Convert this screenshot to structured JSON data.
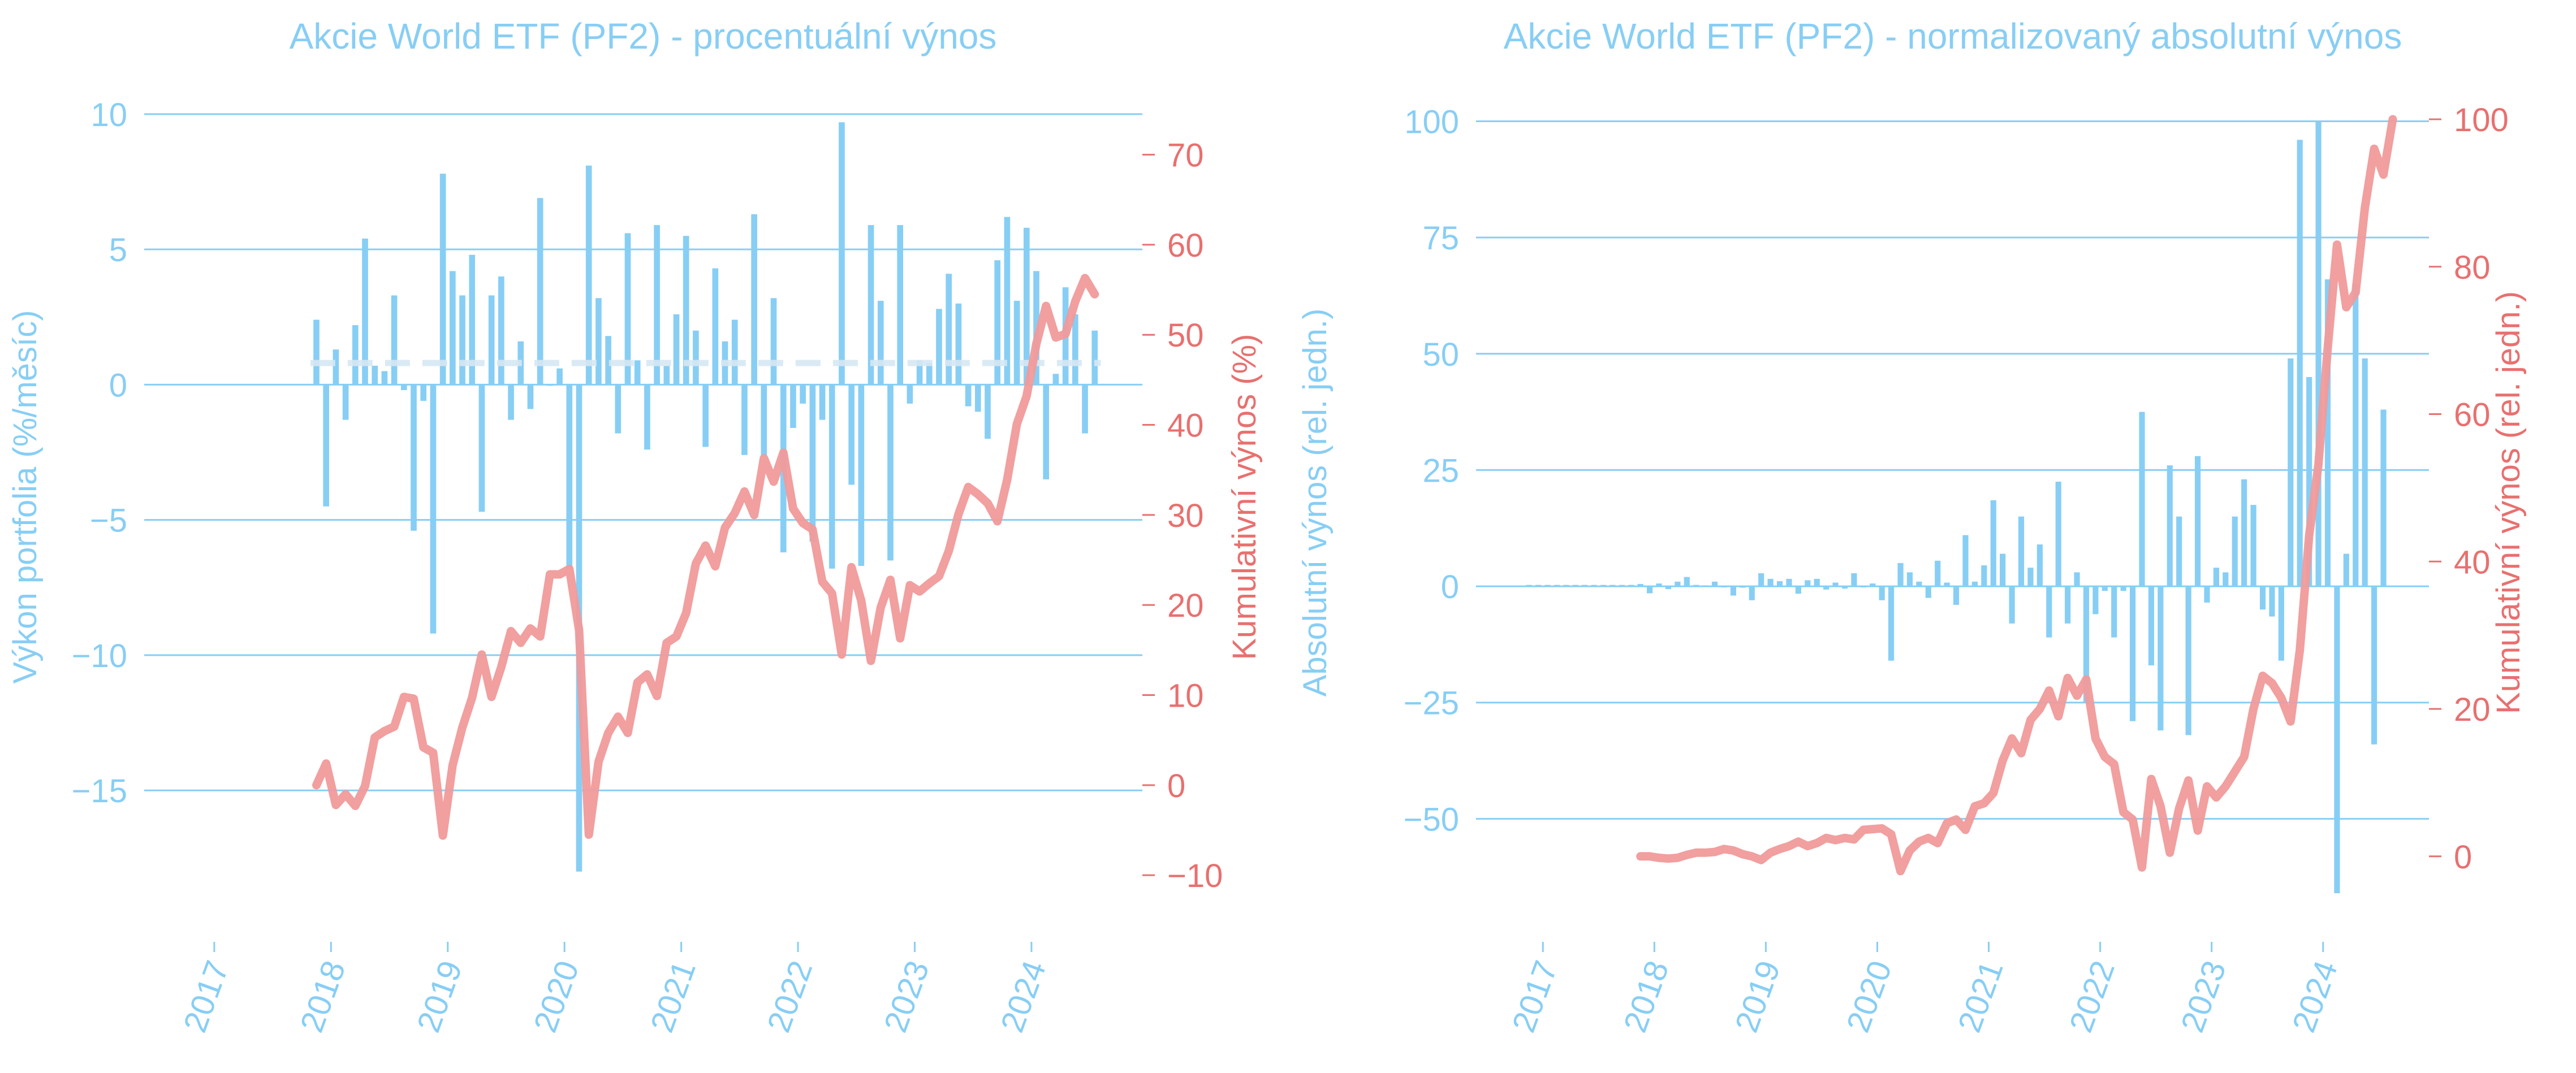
{
  "colors": {
    "bar": "#87CEF5",
    "line": "#F09A9A",
    "axis_left": "#87CEF5",
    "axis_right": "#E8706F",
    "mean_line": "#D6E8F3"
  },
  "chart_data": [
    {
      "type": "bar",
      "title": "Akcie World ETF (PF2) - procentuální výnos",
      "ylabel": "Výkon portfolia (%/měsíc)",
      "y2label": "Kumulativní výnos (%)",
      "xlim": [
        2016.4,
        2024.95
      ],
      "ylim": [
        -18.8,
        10.5
      ],
      "y2lim": [
        -12,
        76
      ],
      "yticks": [
        10,
        5,
        0,
        -5,
        -10,
        -15
      ],
      "y2ticks": [
        70,
        60,
        50,
        40,
        30,
        20,
        10,
        0,
        -10
      ],
      "xticks": [
        "2017",
        "2018",
        "2019",
        "2020",
        "2021",
        "2022",
        "2023",
        "2024"
      ],
      "mean_line": 0.8,
      "grid": "horizontal",
      "bars": {
        "start": "2017-11",
        "values": [
          2.4,
          -4.5,
          1.3,
          -1.3,
          2.2,
          5.4,
          0.7,
          0.5,
          3.3,
          -0.2,
          -5.4,
          -0.6,
          -9.2,
          7.8,
          4.2,
          3.3,
          4.8,
          -4.7,
          3.3,
          4.0,
          -1.3,
          1.6,
          -0.9,
          6.9,
          0.0,
          0.6,
          -6.8,
          -18.0,
          8.1,
          3.2,
          1.8,
          -1.8,
          5.6,
          0.9,
          -2.4,
          5.9,
          0.7,
          2.6,
          5.5,
          2.0,
          -2.3,
          4.3,
          1.6,
          2.4,
          -2.6,
          6.3,
          -2.6,
          3.2,
          -6.2,
          -1.6,
          -0.7,
          -5.8,
          -1.3,
          -6.8,
          9.7,
          -3.7,
          -6.7,
          5.9,
          3.1,
          -6.5,
          5.9,
          -0.7,
          0.9,
          0.8,
          2.8,
          4.1,
          3.0,
          -0.8,
          -1.0,
          -2.0,
          4.6,
          6.2,
          3.1,
          5.8,
          4.2,
          -3.5,
          0.4,
          3.6,
          2.6,
          -1.8,
          2.0
        ]
      },
      "line": {
        "start": "2017-11",
        "values": [
          0,
          2.4,
          -2.2,
          -1.0,
          -2.3,
          -0.1,
          5.3,
          6.0,
          6.5,
          9.8,
          9.6,
          4.2,
          3.6,
          -5.6,
          2.2,
          6.4,
          9.7,
          14.5,
          9.8,
          13.1,
          17.1,
          15.8,
          17.4,
          16.5,
          23.4,
          23.4,
          24.0,
          17.2,
          -5.5,
          2.6,
          5.8,
          7.6,
          5.8,
          11.4,
          12.3,
          9.9,
          15.8,
          16.5,
          19.1,
          24.6,
          26.6,
          24.3,
          28.6,
          30.2,
          32.6,
          30.0,
          36.3,
          33.7,
          36.9,
          30.7,
          29.1,
          28.4,
          22.6,
          21.3,
          14.5,
          24.2,
          20.5,
          13.8,
          19.7,
          22.8,
          16.3,
          22.2,
          21.5,
          22.4,
          23.2,
          26.0,
          30.1,
          33.1,
          32.3,
          31.3,
          29.3,
          33.9,
          40.1,
          43.2,
          49.0,
          53.2,
          49.7,
          50.1,
          53.7,
          56.3,
          54.5
        ]
      }
    },
    {
      "type": "bar",
      "title": "Akcie World ETF (PF2) - normalizovaný absolutní výnos",
      "ylabel": "Absolutní výnos (rel. jedn.)",
      "y2label": "Kumulativní výnos (rel. jedn.)",
      "xlim": [
        2016.4,
        2024.95
      ],
      "ylim": [
        -66,
        102
      ],
      "y2lim": [
        -5,
        101
      ],
      "yticks": [
        100,
        75,
        50,
        25,
        0,
        -25,
        -50
      ],
      "y2ticks": [
        100,
        80,
        60,
        40,
        20,
        0
      ],
      "xticks": [
        "2017",
        "2018",
        "2019",
        "2020",
        "2021",
        "2022",
        "2023",
        "2024"
      ],
      "grid": "horizontal",
      "bars": {
        "start": "2016-11",
        "values": [
          0.3,
          0.3,
          0.3,
          0.3,
          0.3,
          0.3,
          0.3,
          0.3,
          0.3,
          0.3,
          0.3,
          0.3,
          0.5,
          -1.5,
          0.6,
          -0.6,
          1.0,
          2.0,
          0.3,
          0.2,
          1.0,
          -0.1,
          -2.0,
          -0.3,
          -3.0,
          2.8,
          1.6,
          1.1,
          1.6,
          -1.6,
          1.3,
          1.6,
          -0.7,
          0.8,
          -0.5,
          2.8,
          0.0,
          0.6,
          -3.0,
          -16.0,
          5.0,
          3.0,
          1.0,
          -2.5,
          5.5,
          0.8,
          -4.0,
          11.0,
          1.0,
          4.5,
          18.5,
          7.0,
          -8.0,
          15.0,
          4.0,
          9.0,
          -11.0,
          22.5,
          -8.0,
          3.0,
          -25.0,
          -6.0,
          -1.0,
          -11.0,
          -1.0,
          -29.0,
          37.5,
          -17.0,
          -31.0,
          26.0,
          15.0,
          -32.0,
          28.0,
          -3.5,
          4.0,
          3.0,
          15.0,
          23.0,
          17.5,
          -5.0,
          -6.5,
          -16.0,
          49.0,
          96.0,
          45.0,
          100.0,
          66.0,
          -66.0,
          7.0,
          65.0,
          49.0,
          -34.0,
          38.0
        ]
      },
      "line": {
        "start": "2017-11",
        "values": [
          0.0,
          0.0,
          -0.2,
          -0.3,
          -0.2,
          0.2,
          0.5,
          0.5,
          0.6,
          1.0,
          0.8,
          0.3,
          0.0,
          -0.5,
          0.5,
          1.0,
          1.4,
          2.0,
          1.4,
          1.8,
          2.5,
          2.2,
          2.5,
          2.3,
          3.6,
          3.7,
          3.8,
          3.0,
          -2.0,
          0.8,
          2.0,
          2.5,
          1.8,
          4.5,
          5.0,
          3.6,
          6.8,
          7.2,
          8.6,
          13.0,
          16.0,
          14.0,
          18.5,
          20.0,
          22.5,
          19.0,
          24.2,
          21.8,
          24.0,
          16.0,
          13.5,
          12.5,
          6.0,
          5.0,
          -1.5,
          10.5,
          6.8,
          0.5,
          6.5,
          10.3,
          3.5,
          9.5,
          8.0,
          9.5,
          11.5,
          13.5,
          20.0,
          24.5,
          23.5,
          21.5,
          18.3,
          28.0,
          43.5,
          53.2,
          69.0,
          83.0,
          74.5,
          76.5,
          88.0,
          96.0,
          92.5,
          100.0
        ]
      }
    }
  ]
}
